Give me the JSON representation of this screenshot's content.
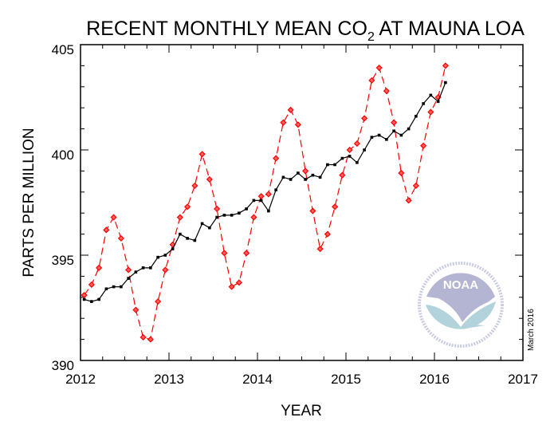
{
  "chart_data": {
    "type": "line",
    "title": {
      "prefix": "RECENT MONTHLY MEAN CO",
      "subscript": "2",
      "suffix": " AT MAUNA LOA"
    },
    "xlabel": "YEAR",
    "ylabel": "PARTS PER MILLION",
    "xlim": [
      2012,
      2017
    ],
    "ylim": [
      390,
      405
    ],
    "x_ticks": [
      "2012",
      "2013",
      "2014",
      "2015",
      "2016",
      "2017"
    ],
    "y_ticks": [
      "390",
      "395",
      "400",
      "405"
    ],
    "grid": false,
    "annotation": "March 2016",
    "start_month": "2012-01",
    "series": [
      {
        "style": "dashed-red-diamonds",
        "color": "#ff0000",
        "values": [
          393.1,
          393.6,
          394.4,
          396.2,
          396.8,
          395.8,
          394.3,
          392.4,
          391.1,
          391.0,
          392.8,
          394.3,
          395.5,
          396.8,
          397.3,
          398.3,
          399.8,
          398.6,
          397.2,
          395.1,
          393.5,
          393.7,
          395.1,
          396.8,
          397.8,
          397.9,
          399.6,
          401.3,
          401.9,
          401.2,
          399.0,
          397.1,
          395.3,
          396.0,
          397.3,
          398.8,
          400.0,
          400.3,
          401.5,
          403.3,
          403.9,
          402.8,
          401.3,
          398.9,
          397.6,
          398.3,
          400.2,
          401.8,
          402.5,
          404.0
        ]
      },
      {
        "style": "solid-black-squares",
        "color": "#000000",
        "values": [
          392.9,
          392.8,
          392.9,
          393.4,
          393.5,
          393.5,
          393.9,
          394.2,
          394.4,
          394.4,
          394.9,
          395.0,
          395.3,
          396.0,
          395.8,
          395.7,
          396.5,
          396.3,
          396.8,
          396.9,
          396.9,
          397.0,
          397.2,
          397.6,
          397.6,
          397.1,
          398.1,
          398.7,
          398.6,
          398.9,
          398.6,
          398.8,
          398.7,
          399.3,
          399.3,
          399.6,
          399.7,
          399.4,
          400.0,
          400.6,
          400.7,
          400.5,
          400.9,
          400.7,
          401.0,
          401.6,
          402.2,
          402.6,
          402.3,
          403.2
        ]
      }
    ]
  },
  "logo": {
    "name": "NOAA",
    "ring_text_top": "NATIONAL OCEANIC AND ATMOSPHERIC ADMINISTRATION",
    "ring_text_bottom": "U.S. DEPARTMENT OF COMMERCE",
    "colors": {
      "upper": "#b3b5d3",
      "lower": "#b3d3dc"
    }
  }
}
